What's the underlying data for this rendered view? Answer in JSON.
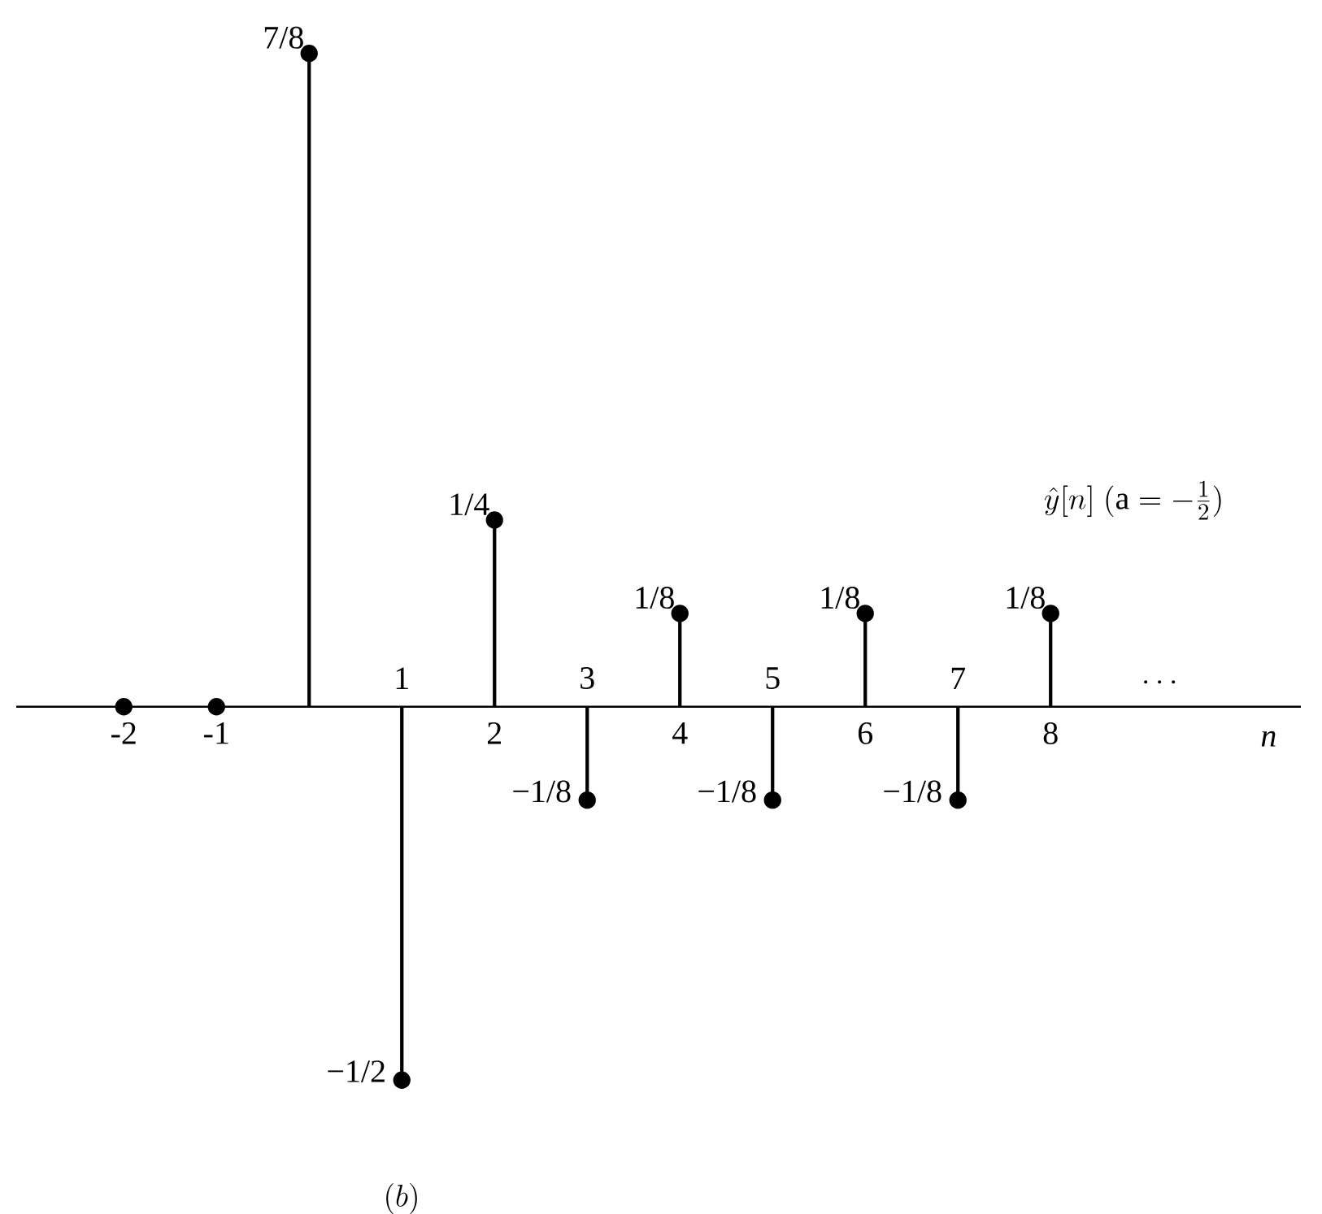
{
  "chart_data": {
    "type": "lollipop",
    "x": [
      -2,
      -1,
      0,
      1,
      2,
      3,
      4,
      5,
      6,
      7,
      8
    ],
    "values": [
      0,
      0,
      0.875,
      -0.5,
      0.25,
      -0.125,
      0.125,
      -0.125,
      0.125,
      -0.125,
      0.125
    ],
    "value_labels": [
      null,
      null,
      "7/8",
      "−1/2",
      "1/4",
      "−1/8",
      "1/8",
      "−1/8",
      "1/8",
      "−1/8",
      "1/8"
    ],
    "color": "#000000",
    "marker": "circle",
    "grid": false,
    "xlim": [
      -3.16,
      10.7
    ],
    "xticks": [
      -2,
      -1,
      2,
      4,
      6,
      8
    ],
    "xlabel": "n",
    "annotations": [
      "\\hat{y}[n]\\ (\\mathrm{a} = -\\frac{1}{2})",
      "\\cdots",
      "(b)",
      "1",
      "3",
      "5",
      "7"
    ]
  }
}
